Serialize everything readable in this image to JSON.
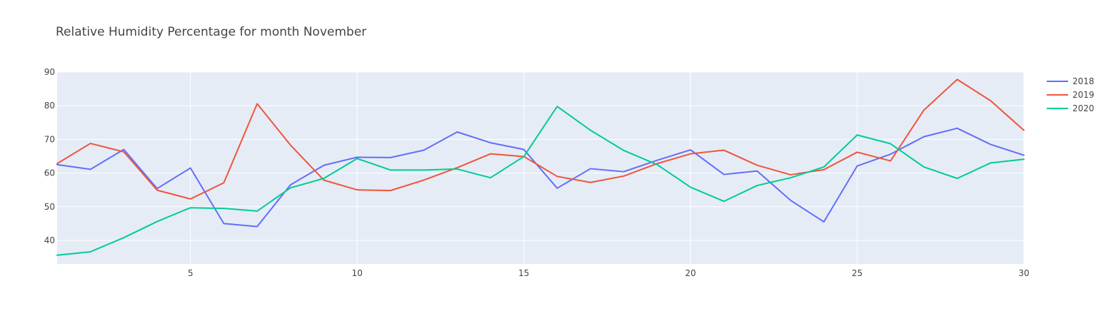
{
  "chart_data": {
    "type": "line",
    "title": "Relative Humidity Percentage for month November",
    "xlabel": "",
    "ylabel": "",
    "xlim": [
      1,
      30
    ],
    "ylim": [
      33,
      90
    ],
    "x_ticks": [
      5,
      10,
      15,
      20,
      25,
      30
    ],
    "y_ticks": [
      40,
      50,
      60,
      70,
      80,
      90
    ],
    "grid": true,
    "legend_position": "top-right",
    "x": [
      1,
      2,
      3,
      4,
      5,
      6,
      7,
      8,
      9,
      10,
      11,
      12,
      13,
      14,
      15,
      16,
      17,
      18,
      19,
      20,
      21,
      22,
      23,
      24,
      25,
      26,
      27,
      28,
      29,
      30
    ],
    "series": [
      {
        "name": "2018",
        "color": "#636efa",
        "values": [
          62.5,
          61.1,
          67.0,
          55.4,
          61.5,
          45.0,
          44.1,
          56.5,
          62.3,
          64.7,
          64.6,
          66.8,
          72.2,
          69.0,
          67.0,
          55.5,
          61.3,
          60.4,
          63.8,
          66.9,
          59.6,
          60.6,
          51.9,
          45.5,
          62.1,
          65.6,
          70.8,
          73.3,
          68.5,
          65.3
        ]
      },
      {
        "name": "2019",
        "color": "#ef553b",
        "values": [
          62.8,
          68.8,
          66.3,
          54.9,
          52.3,
          57.1,
          80.6,
          68.3,
          57.9,
          55.0,
          54.8,
          57.9,
          61.6,
          65.7,
          64.9,
          59.0,
          57.2,
          59.1,
          62.8,
          65.7,
          66.8,
          62.3,
          59.5,
          61.0,
          66.2,
          63.6,
          78.7,
          87.8,
          81.5,
          72.7
        ]
      },
      {
        "name": "2020",
        "color": "#00cc96",
        "values": [
          35.6,
          36.6,
          40.8,
          45.6,
          49.7,
          49.5,
          48.7,
          55.6,
          58.4,
          64.3,
          60.9,
          60.9,
          61.2,
          58.6,
          64.9,
          79.8,
          72.7,
          66.7,
          62.5,
          55.8,
          51.6,
          56.3,
          58.6,
          61.8,
          71.3,
          68.7,
          61.8,
          58.4,
          63.0,
          64.1
        ]
      }
    ]
  }
}
